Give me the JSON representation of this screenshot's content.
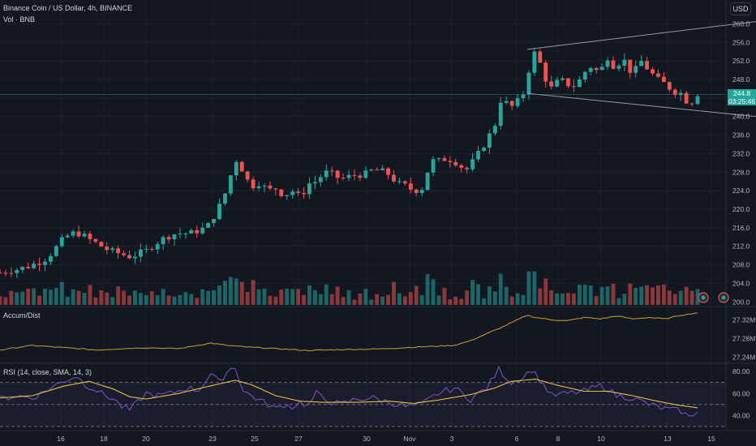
{
  "header": {
    "symbol_title": "Binance Coin / US Dollar, 4h, BINANCE",
    "volume_title": "Vol · BNB",
    "currency_button": "USD"
  },
  "price_tag": {
    "price": "244.8",
    "countdown": "03:25:46"
  },
  "colors": {
    "up": "#26a69a",
    "down": "#ef5350",
    "adl": "#c9a227",
    "rsi": "#7e57c2",
    "rsi_ma": "#e0c341",
    "background": "#131722",
    "grid": "#1e222d"
  },
  "icons": [
    "currency-badge-icon",
    "currency-badge-icon"
  ],
  "chart_data": [
    {
      "type": "candlestick",
      "title": "Binance Coin / US Dollar, 4h, BINANCE",
      "ylim": [
        199,
        262
      ],
      "y_ticks": [
        "260.0",
        "256.0",
        "252.0",
        "248.0",
        "244.0",
        "240.0",
        "236.0",
        "232.0",
        "228.0",
        "224.0",
        "220.0",
        "216.0",
        "212.0",
        "208.0",
        "204.0",
        "200.0"
      ],
      "y_tick_values": [
        260,
        256,
        252,
        248,
        244,
        240,
        236,
        232,
        228,
        224,
        220,
        216,
        212,
        208,
        204,
        200
      ],
      "x_ticks": [
        "16",
        "18",
        "20",
        "23",
        "25",
        "27",
        "30",
        "Nov",
        "3",
        "6",
        "8",
        "10",
        "13",
        "15"
      ],
      "waypoints": [
        [
          0,
          206.3
        ],
        [
          10,
          206.8
        ],
        [
          20,
          207.0
        ],
        [
          30,
          207.4
        ],
        [
          40,
          208.0
        ],
        [
          55,
          209.2
        ],
        [
          65,
          210.8
        ],
        [
          75,
          213.0
        ],
        [
          85,
          214.5
        ],
        [
          95,
          215.0
        ],
        [
          105,
          214.0
        ],
        [
          115,
          213.0
        ],
        [
          125,
          212.0
        ],
        [
          135,
          211.0
        ],
        [
          150,
          210.3
        ],
        [
          160,
          209.8
        ],
        [
          170,
          210.3
        ],
        [
          180,
          211.0
        ],
        [
          190,
          212.5
        ],
        [
          200,
          213.5
        ],
        [
          210,
          214.5
        ],
        [
          220,
          214.8
        ],
        [
          235,
          214.8
        ],
        [
          245,
          215.5
        ],
        [
          255,
          216.0
        ],
        [
          265,
          219.0
        ],
        [
          275,
          222.0
        ],
        [
          282,
          226.0
        ],
        [
          290,
          230.5
        ],
        [
          295,
          231.0
        ],
        [
          300,
          227.5
        ],
        [
          310,
          225.0
        ],
        [
          320,
          225.8
        ],
        [
          330,
          224.0
        ],
        [
          340,
          224.5
        ],
        [
          350,
          223.0
        ],
        [
          360,
          224.0
        ],
        [
          370,
          222.5
        ],
        [
          380,
          225.5
        ],
        [
          390,
          226.0
        ],
        [
          400,
          228.0
        ],
        [
          410,
          227.5
        ],
        [
          420,
          226.5
        ],
        [
          430,
          227.0
        ],
        [
          440,
          227.5
        ],
        [
          450,
          227.5
        ],
        [
          460,
          228.5
        ],
        [
          470,
          228.2
        ],
        [
          480,
          227.5
        ],
        [
          490,
          225.5
        ],
        [
          500,
          225.0
        ],
        [
          510,
          224.0
        ],
        [
          520,
          224.5
        ],
        [
          525,
          226.5
        ],
        [
          530,
          230.5
        ],
        [
          540,
          230.3
        ],
        [
          550,
          231.0
        ],
        [
          560,
          230.5
        ],
        [
          570,
          229.0
        ],
        [
          575,
          228.5
        ],
        [
          580,
          229.5
        ],
        [
          590,
          232.0
        ],
        [
          600,
          235.0
        ],
        [
          610,
          238.0
        ],
        [
          615,
          243.5
        ],
        [
          620,
          243.5
        ],
        [
          630,
          242.0
        ],
        [
          640,
          243.5
        ],
        [
          645,
          245.0
        ],
        [
          650,
          248.5
        ],
        [
          655,
          252.5
        ],
        [
          660,
          254.0
        ],
        [
          668,
          250.5
        ],
        [
          675,
          247.0
        ],
        [
          680,
          246.0
        ],
        [
          690,
          248.0
        ],
        [
          700,
          247.0
        ],
        [
          710,
          246.5
        ],
        [
          720,
          249.5
        ],
        [
          730,
          251.0
        ],
        [
          740,
          249.0
        ],
        [
          745,
          252.5
        ],
        [
          750,
          253.0
        ],
        [
          755,
          251.0
        ],
        [
          760,
          251.5
        ],
        [
          770,
          252.0
        ],
        [
          780,
          249.0
        ],
        [
          790,
          252.0
        ],
        [
          800,
          250.0
        ],
        [
          810,
          248.0
        ],
        [
          820,
          247.0
        ],
        [
          830,
          245.5
        ],
        [
          840,
          245.0
        ],
        [
          850,
          242.5
        ],
        [
          860,
          245.0
        ]
      ],
      "candle_count": 125,
      "channel_lines": [
        [
          [
            650,
            254.5
          ],
          [
            932,
            260.5
          ]
        ],
        [
          [
            650,
            245.0
          ],
          [
            932,
            240.0
          ]
        ]
      ],
      "last_price": 244.8,
      "last_price_line": true
    },
    {
      "type": "bar",
      "title": "Vol · BNB",
      "series": "volume",
      "note": "volume histogram, up bars teal, down bars red"
    },
    {
      "type": "line",
      "title": "Accum/Dist",
      "ylim": [
        27.23,
        27.345
      ],
      "y_ticks": [
        "27.32M",
        "27.28M",
        "27.24M"
      ],
      "y_tick_values": [
        27.32,
        27.28,
        27.24
      ],
      "waypoints": [
        [
          0,
          27.255
        ],
        [
          40,
          27.265
        ],
        [
          80,
          27.26
        ],
        [
          120,
          27.255
        ],
        [
          150,
          27.258
        ],
        [
          180,
          27.26
        ],
        [
          220,
          27.258
        ],
        [
          260,
          27.27
        ],
        [
          280,
          27.265
        ],
        [
          300,
          27.262
        ],
        [
          340,
          27.258
        ],
        [
          380,
          27.254
        ],
        [
          420,
          27.256
        ],
        [
          460,
          27.257
        ],
        [
          500,
          27.26
        ],
        [
          520,
          27.262
        ],
        [
          560,
          27.265
        ],
        [
          580,
          27.275
        ],
        [
          600,
          27.29
        ],
        [
          620,
          27.305
        ],
        [
          650,
          27.33
        ],
        [
          660,
          27.325
        ],
        [
          680,
          27.32
        ],
        [
          700,
          27.318
        ],
        [
          720,
          27.325
        ],
        [
          740,
          27.322
        ],
        [
          760,
          27.328
        ],
        [
          780,
          27.322
        ],
        [
          800,
          27.325
        ],
        [
          820,
          27.322
        ],
        [
          840,
          27.33
        ],
        [
          860,
          27.335
        ]
      ]
    },
    {
      "type": "line",
      "title": "RSI (14, close, SMA, 14, 3)",
      "ylim": [
        27,
        86
      ],
      "y_ticks": [
        "80.00",
        "60.00",
        "40.00"
      ],
      "y_tick_values": [
        80,
        60,
        40
      ],
      "bands": [
        30,
        50,
        70
      ],
      "rsi_waypoints": [
        [
          0,
          55
        ],
        [
          20,
          58
        ],
        [
          40,
          56
        ],
        [
          60,
          64
        ],
        [
          80,
          72
        ],
        [
          95,
          76
        ],
        [
          105,
          68
        ],
        [
          115,
          65
        ],
        [
          125,
          60
        ],
        [
          140,
          55
        ],
        [
          150,
          48
        ],
        [
          160,
          45
        ],
        [
          170,
          52
        ],
        [
          180,
          60
        ],
        [
          195,
          58
        ],
        [
          210,
          60
        ],
        [
          230,
          65
        ],
        [
          245,
          63
        ],
        [
          260,
          78
        ],
        [
          270,
          70
        ],
        [
          282,
          82
        ],
        [
          290,
          84
        ],
        [
          300,
          62
        ],
        [
          310,
          58
        ],
        [
          320,
          54
        ],
        [
          330,
          50
        ],
        [
          340,
          46
        ],
        [
          350,
          50
        ],
        [
          360,
          48
        ],
        [
          370,
          52
        ],
        [
          380,
          49
        ],
        [
          390,
          60
        ],
        [
          400,
          55
        ],
        [
          410,
          52
        ],
        [
          420,
          50
        ],
        [
          440,
          55
        ],
        [
          460,
          56
        ],
        [
          480,
          52
        ],
        [
          500,
          48
        ],
        [
          520,
          50
        ],
        [
          540,
          60
        ],
        [
          560,
          65
        ],
        [
          580,
          55
        ],
        [
          600,
          65
        ],
        [
          615,
          82
        ],
        [
          630,
          70
        ],
        [
          645,
          75
        ],
        [
          655,
          82
        ],
        [
          670,
          68
        ],
        [
          680,
          58
        ],
        [
          700,
          60
        ],
        [
          720,
          62
        ],
        [
          740,
          67
        ],
        [
          750,
          64
        ],
        [
          760,
          58
        ],
        [
          780,
          56
        ],
        [
          800,
          50
        ],
        [
          820,
          46
        ],
        [
          840,
          44
        ],
        [
          850,
          38
        ],
        [
          860,
          45
        ]
      ],
      "ma_waypoints": [
        [
          0,
          56
        ],
        [
          40,
          58
        ],
        [
          80,
          67
        ],
        [
          110,
          71
        ],
        [
          140,
          64
        ],
        [
          160,
          57
        ],
        [
          180,
          55
        ],
        [
          220,
          60
        ],
        [
          260,
          67
        ],
        [
          290,
          72
        ],
        [
          310,
          68
        ],
        [
          340,
          58
        ],
        [
          370,
          53
        ],
        [
          400,
          52
        ],
        [
          440,
          52
        ],
        [
          480,
          53
        ],
        [
          510,
          51
        ],
        [
          540,
          54
        ],
        [
          580,
          59
        ],
        [
          610,
          65
        ],
        [
          630,
          71
        ],
        [
          660,
          73
        ],
        [
          690,
          67
        ],
        [
          720,
          62
        ],
        [
          750,
          62
        ],
        [
          780,
          58
        ],
        [
          810,
          53
        ],
        [
          840,
          49
        ],
        [
          860,
          47
        ]
      ]
    }
  ]
}
